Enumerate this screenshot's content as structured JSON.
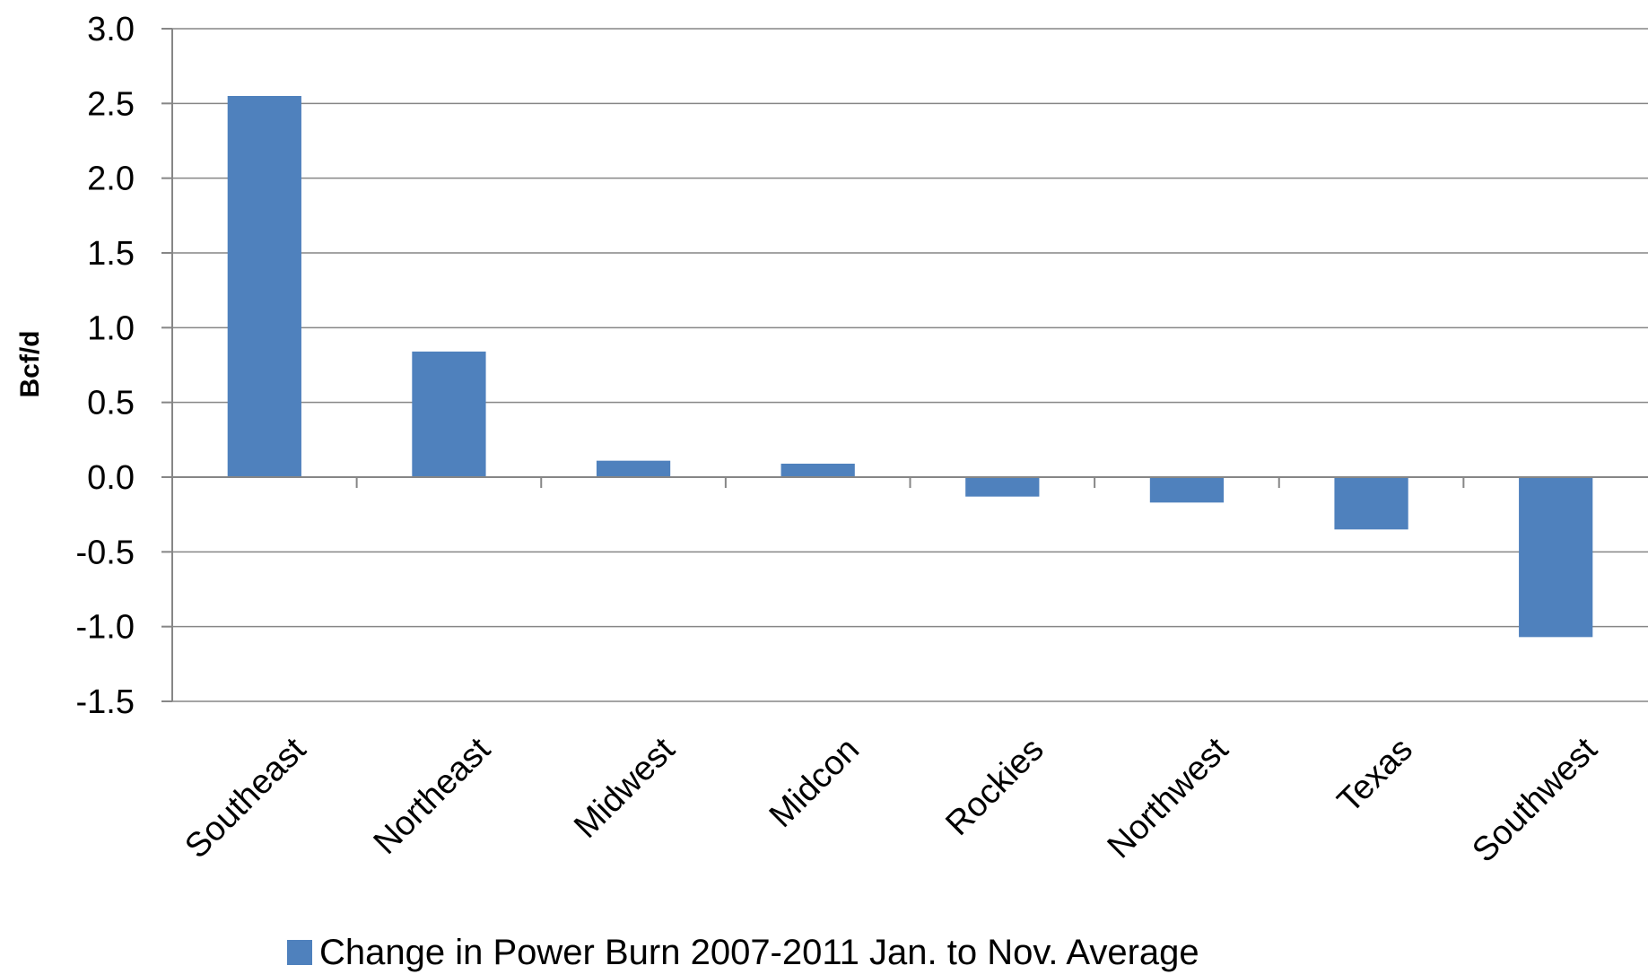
{
  "chart_data": {
    "type": "bar",
    "title": "",
    "xlabel": "",
    "ylabel": "Bcf/d",
    "ylim": [
      -1.5,
      3.0
    ],
    "yticks": [
      "3.0",
      "2.5",
      "2.0",
      "1.5",
      "1.0",
      "0.5",
      "0.0",
      "-0.5",
      "-1.0",
      "-1.5"
    ],
    "categories": [
      "Southeast",
      "Northeast",
      "Midwest",
      "Midcon",
      "Rockies",
      "Northwest",
      "Texas",
      "Southwest"
    ],
    "series": [
      {
        "name": "Change in Power Burn 2007-2011 Jan. to Nov. Average",
        "color": "#4F81BD",
        "values": [
          2.55,
          0.84,
          0.11,
          0.09,
          -0.13,
          -0.17,
          -0.35,
          -1.07
        ]
      }
    ],
    "grid": true,
    "legend": "bottom"
  }
}
